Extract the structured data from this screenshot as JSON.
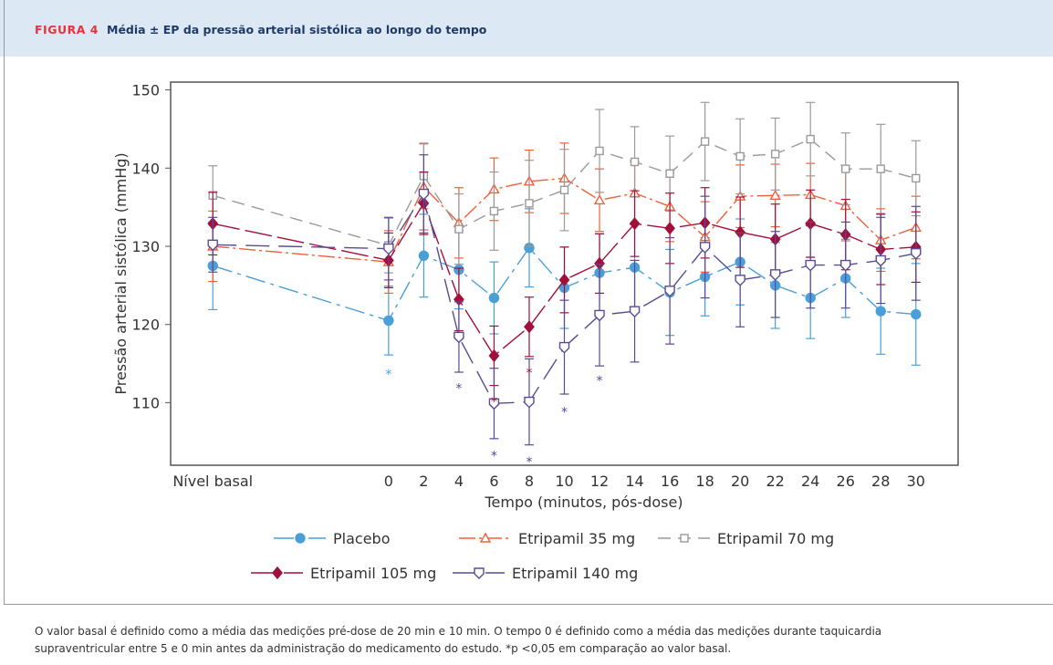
{
  "chart_data": {
    "type": "line",
    "figure_label": "FIGURA 4",
    "title": "Média ± EP da pressão arterial sistólica ao longo do tempo",
    "x_label": "Tempo (minutos, pós-dose)",
    "y_label": "Pressão arterial sistólica (mmHg)",
    "x": [
      -10,
      0,
      2,
      4,
      6,
      8,
      10,
      12,
      14,
      16,
      18,
      20,
      22,
      24,
      26,
      28,
      30
    ],
    "xlim": [
      -12.4,
      32.4
    ],
    "xticks": [
      {
        "value": -10,
        "label": "Nível basal"
      },
      0,
      2,
      4,
      6,
      8,
      10,
      12,
      14,
      16,
      18,
      20,
      22,
      24,
      26,
      28,
      30
    ],
    "ylim": [
      102,
      151
    ],
    "yticks": [
      110,
      120,
      130,
      140,
      150
    ],
    "series": [
      {
        "name": "Placebo",
        "color": "#4a9fd8",
        "marker": "circle",
        "dash": "22 6 4 6",
        "values": [
          127.5,
          120.5,
          128.8,
          127.0,
          123.4,
          129.8,
          124.7,
          126.6,
          127.3,
          124.1,
          126.1,
          128.0,
          125.0,
          123.4,
          125.9,
          121.7,
          121.3
        ],
        "errors": [
          5.6,
          4.4,
          5.3,
          5.0,
          4.6,
          5.0,
          5.2,
          5.0,
          5.5,
          5.5,
          5.0,
          5.5,
          5.5,
          5.2,
          5.0,
          5.5,
          6.5
        ]
      },
      {
        "name": "Etripamil 35 mg",
        "color": "#f0603a",
        "marker": "triangle",
        "dash": "18 4 3 4",
        "values": [
          130.0,
          128.0,
          137.6,
          133.0,
          137.3,
          138.3,
          138.7,
          135.9,
          136.8,
          135.1,
          131.2,
          136.4,
          136.5,
          136.6,
          135.2,
          130.8,
          132.4
        ],
        "errors": [
          4.5,
          4.0,
          5.5,
          4.5,
          4.0,
          4.0,
          4.5,
          4.0,
          4.0,
          4.5,
          4.5,
          4.0,
          4.0,
          4.0,
          4.5,
          4.0,
          4.0
        ]
      },
      {
        "name": "Etripamil 70 mg",
        "color": "#9a9a9a",
        "marker": "square",
        "dash": "14 8",
        "values": [
          136.5,
          130.1,
          139.0,
          132.2,
          134.5,
          135.5,
          137.2,
          142.2,
          140.8,
          139.3,
          143.4,
          141.5,
          141.8,
          143.7,
          139.9,
          139.9,
          138.7
        ],
        "errors": [
          3.8,
          3.5,
          4.2,
          4.5,
          5.0,
          5.5,
          5.2,
          5.3,
          4.5,
          4.8,
          5.0,
          4.8,
          4.6,
          4.7,
          4.6,
          5.7,
          4.8
        ]
      },
      {
        "name": "Etripamil 105 mg",
        "color": "#a0103a",
        "marker": "diamond",
        "dash": "30 6",
        "values": [
          132.9,
          128.2,
          135.5,
          123.2,
          116.0,
          119.7,
          125.7,
          127.8,
          132.9,
          132.3,
          133.0,
          131.8,
          130.9,
          132.9,
          131.5,
          129.6,
          129.9
        ],
        "errors": [
          4.0,
          3.5,
          4.0,
          4.0,
          3.8,
          3.8,
          4.2,
          3.8,
          4.2,
          4.5,
          4.5,
          4.5,
          4.5,
          4.3,
          4.5,
          4.5,
          4.5
        ]
      },
      {
        "name": "Etripamil 140 mg",
        "color": "#5a4a96",
        "marker": "shield",
        "dash": "26 10",
        "values": [
          130.2,
          129.7,
          136.7,
          118.4,
          109.9,
          110.1,
          117.1,
          121.2,
          121.7,
          124.3,
          129.9,
          125.7,
          126.4,
          127.6,
          127.6,
          128.2,
          129.1
        ],
        "errors": [
          3.5,
          4.0,
          5.0,
          4.5,
          4.5,
          5.5,
          6.0,
          6.5,
          6.5,
          6.8,
          6.5,
          6.0,
          5.5,
          5.5,
          5.5,
          5.5,
          6.0
        ]
      }
    ],
    "annotations": [
      {
        "text": "*",
        "series": 0,
        "x": 0,
        "y": 114.0
      },
      {
        "text": "*",
        "series": 4,
        "x": 4,
        "y": 112.2
      },
      {
        "text": "*",
        "series": 3,
        "x": 6,
        "y": 110.5
      },
      {
        "text": "*",
        "series": 4,
        "x": 6,
        "y": 103.6
      },
      {
        "text": "*",
        "series": 3,
        "x": 8,
        "y": 114.2
      },
      {
        "text": "*",
        "series": 4,
        "x": 8,
        "y": 102.8
      },
      {
        "text": "*",
        "series": 4,
        "x": 10,
        "y": 109.2
      },
      {
        "text": "*",
        "series": 4,
        "x": 12,
        "y": 113.2
      }
    ],
    "note": [
      "O valor basal é definido como a média das medições pré-dose de 20 min e 10 min. O tempo 0 é definido como a média das medições durante taquicardia",
      "supraventricular entre 5 e 0 min antes da administração do medicamento do estudo. *p <0,05 em comparação ao valor basal."
    ]
  }
}
